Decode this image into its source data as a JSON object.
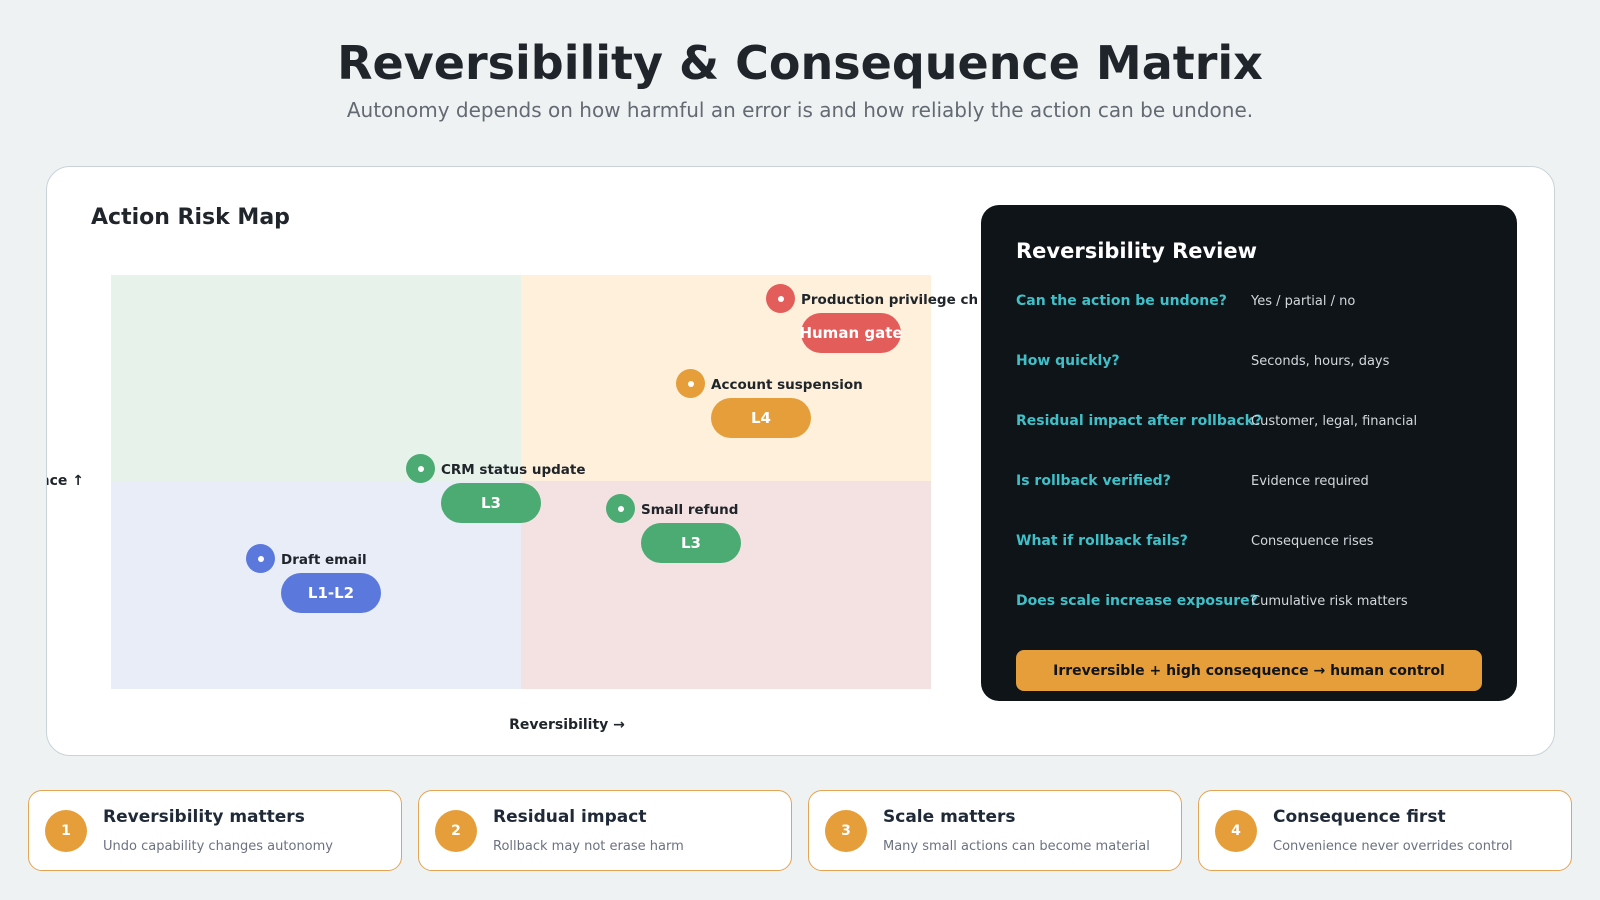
{
  "header": {
    "title": "Reversibility & Consequence Matrix",
    "subtitle": "Autonomy depends on how harmful an error is and how reliably the action can be undone."
  },
  "risk_map": {
    "title": "Action Risk Map",
    "y_axis_label": "Consequence ↑",
    "x_axis_label": "Reversibility →",
    "quadrant_colors": {
      "top_left": "#e7f2ea",
      "top_right": "#fef0da",
      "bottom_left": "#e9edf8",
      "bottom_right": "#f4e2e2"
    },
    "actions": [
      {
        "label": "Production privilege change",
        "level": "Human gate",
        "color": "#e35d5b"
      },
      {
        "label": "Account suspension",
        "level": "L4",
        "color": "#e59e3a"
      },
      {
        "label": "CRM status update",
        "level": "L3",
        "color": "#4caa73"
      },
      {
        "label": "Small refund",
        "level": "L3",
        "color": "#4caa73"
      },
      {
        "label": "Draft email",
        "level": "L1-L2",
        "color": "#5b79dc"
      }
    ]
  },
  "review": {
    "title": "Reversibility Review",
    "rows": [
      {
        "question": "Can the action be undone?",
        "answer": "Yes / partial / no"
      },
      {
        "question": "How quickly?",
        "answer": "Seconds, hours, days"
      },
      {
        "question": "Residual impact after rollback?",
        "answer": "Customer, legal, financial"
      },
      {
        "question": "Is rollback verified?",
        "answer": "Evidence required"
      },
      {
        "question": "What if rollback fails?",
        "answer": "Consequence rises"
      },
      {
        "question": "Does scale increase exposure?",
        "answer": "Cumulative risk matters"
      }
    ],
    "verdict": "Irreversible + high consequence → human control"
  },
  "principles": [
    {
      "num": "1",
      "title": "Reversibility matters",
      "sub": "Undo capability changes autonomy"
    },
    {
      "num": "2",
      "title": "Residual impact",
      "sub": "Rollback may not erase harm"
    },
    {
      "num": "3",
      "title": "Scale matters",
      "sub": "Many small actions can become material"
    },
    {
      "num": "4",
      "title": "Consequence first",
      "sub": "Convenience never overrides control"
    }
  ],
  "colors": {
    "accent": "#e59e3a",
    "question": "#3fc0c9",
    "review_bg": "#0f1418"
  }
}
